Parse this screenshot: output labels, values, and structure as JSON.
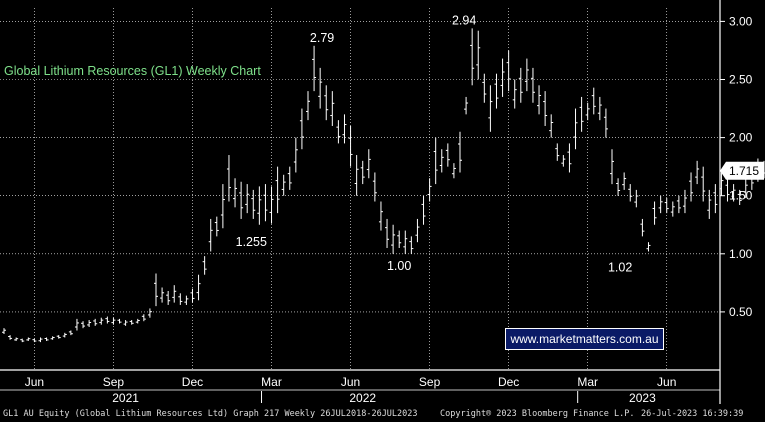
{
  "chart_data": {
    "type": "ohlc",
    "title": "Global Lithium Resources (GL1) Weekly Chart",
    "ylim": [
      0,
      3.1
    ],
    "yticks": [
      "0.50",
      "1.00",
      "1.50",
      "2.00",
      "2.50",
      "3.00"
    ],
    "x_month_labels": [
      "Jun",
      "Sep",
      "Dec",
      "Mar",
      "Jun",
      "Sep",
      "Dec",
      "Mar",
      "Jun"
    ],
    "x_year_labels": [
      "2021",
      "2022",
      "2023"
    ],
    "last_price": "1.715",
    "annotations": [
      "2.79",
      "2.94",
      "1.255",
      "1.00",
      "1.02"
    ],
    "weeks_start": "2021-05-03",
    "series": [
      {
        "values": [
          [
            0.36,
            0.31
          ],
          [
            0.3,
            0.26
          ],
          [
            0.28,
            0.25
          ],
          [
            0.27,
            0.24
          ],
          [
            0.28,
            0.25
          ],
          [
            0.27,
            0.24
          ],
          [
            0.28,
            0.24
          ],
          [
            0.28,
            0.25
          ],
          [
            0.29,
            0.26
          ],
          [
            0.3,
            0.27
          ],
          [
            0.32,
            0.28
          ],
          [
            0.34,
            0.3
          ],
          [
            0.44,
            0.34
          ],
          [
            0.42,
            0.36
          ],
          [
            0.43,
            0.37
          ],
          [
            0.44,
            0.38
          ],
          [
            0.45,
            0.39
          ],
          [
            0.46,
            0.4
          ],
          [
            0.45,
            0.39
          ],
          [
            0.44,
            0.4
          ],
          [
            0.43,
            0.38
          ],
          [
            0.43,
            0.39
          ],
          [
            0.44,
            0.4
          ],
          [
            0.48,
            0.42
          ],
          [
            0.53,
            0.45
          ],
          [
            0.83,
            0.55
          ],
          [
            0.71,
            0.58
          ],
          [
            0.68,
            0.56
          ],
          [
            0.73,
            0.58
          ],
          [
            0.66,
            0.56
          ],
          [
            0.64,
            0.56
          ],
          [
            0.7,
            0.58
          ],
          [
            0.82,
            0.6
          ],
          [
            0.98,
            0.82
          ],
          [
            1.3,
            1.02
          ],
          [
            1.32,
            1.15
          ],
          [
            1.6,
            1.22
          ],
          [
            1.85,
            1.45
          ],
          [
            1.65,
            1.4
          ],
          [
            1.62,
            1.3
          ],
          [
            1.6,
            1.35
          ],
          [
            1.55,
            1.3
          ],
          [
            1.58,
            1.25
          ],
          [
            1.6,
            1.28
          ],
          [
            1.58,
            1.26
          ],
          [
            1.75,
            1.35
          ],
          [
            1.68,
            1.5
          ],
          [
            1.75,
            1.55
          ],
          [
            2.0,
            1.7
          ],
          [
            2.25,
            1.9
          ],
          [
            2.4,
            2.15
          ],
          [
            2.79,
            2.4
          ],
          [
            2.6,
            2.25
          ],
          [
            2.45,
            2.15
          ],
          [
            2.4,
            2.1
          ],
          [
            2.15,
            1.95
          ],
          [
            2.2,
            1.95
          ],
          [
            2.1,
            1.75
          ],
          [
            1.85,
            1.5
          ],
          [
            1.8,
            1.6
          ],
          [
            1.9,
            1.65
          ],
          [
            1.7,
            1.45
          ],
          [
            1.45,
            1.2
          ],
          [
            1.3,
            1.05
          ],
          [
            1.25,
            1.0
          ],
          [
            1.2,
            1.05
          ],
          [
            1.2,
            1.0
          ],
          [
            1.15,
            1.0
          ],
          [
            1.3,
            1.1
          ],
          [
            1.5,
            1.25
          ],
          [
            1.65,
            1.45
          ],
          [
            2.0,
            1.6
          ],
          [
            1.9,
            1.7
          ],
          [
            1.95,
            1.75
          ],
          [
            1.78,
            1.65
          ],
          [
            2.05,
            1.7
          ],
          [
            2.35,
            2.2
          ],
          [
            2.94,
            2.45
          ],
          [
            2.92,
            2.5
          ],
          [
            2.55,
            2.3
          ],
          [
            2.45,
            2.05
          ],
          [
            2.55,
            2.25
          ],
          [
            2.68,
            2.35
          ],
          [
            2.75,
            2.4
          ],
          [
            2.5,
            2.25
          ],
          [
            2.6,
            2.3
          ],
          [
            2.68,
            2.4
          ],
          [
            2.6,
            2.3
          ],
          [
            2.45,
            2.2
          ],
          [
            2.4,
            2.1
          ],
          [
            2.2,
            2.0
          ],
          [
            1.95,
            1.8
          ],
          [
            1.85,
            1.75
          ],
          [
            1.95,
            1.7
          ],
          [
            2.25,
            1.9
          ],
          [
            2.35,
            2.05
          ],
          [
            2.3,
            2.15
          ],
          [
            2.43,
            2.2
          ],
          [
            2.35,
            2.15
          ],
          [
            2.25,
            2.0
          ],
          [
            1.9,
            1.6
          ],
          [
            1.65,
            1.5
          ],
          [
            1.7,
            1.55
          ],
          [
            1.6,
            1.45
          ],
          [
            1.55,
            1.4
          ],
          [
            1.3,
            1.15
          ],
          [
            1.1,
            1.02
          ],
          [
            1.45,
            1.25
          ],
          [
            1.5,
            1.35
          ],
          [
            1.48,
            1.35
          ],
          [
            1.45,
            1.32
          ],
          [
            1.5,
            1.35
          ],
          [
            1.55,
            1.35
          ],
          [
            1.7,
            1.45
          ],
          [
            1.8,
            1.6
          ],
          [
            1.75,
            1.45
          ],
          [
            1.55,
            1.3
          ],
          [
            1.6,
            1.35
          ],
          [
            1.7,
            1.5
          ],
          [
            1.65,
            1.45
          ],
          [
            1.6,
            1.45
          ],
          [
            1.55,
            1.42
          ],
          [
            1.65,
            1.48
          ],
          [
            1.75,
            1.55
          ],
          [
            1.82,
            1.62
          ],
          [
            1.8,
            1.65
          ],
          [
            1.75,
            1.57
          ],
          [
            1.74,
            1.6
          ]
        ]
      }
    ]
  },
  "footer": {
    "left": "GL1 AU Equity (Global Lithium Resources Ltd) Graph 217  Weekly 26JUL2018-26JUL2023",
    "center": "Copyright® 2023 Bloomberg Finance L.P.",
    "right": "26-Jul-2023 16:39:39"
  },
  "watermark": "www.marketmatters.com.au",
  "colors": {
    "background": "#000000",
    "bars": "#ffffff",
    "grid": "#ffffff",
    "title": "#7ee08a",
    "watermark_bg": "#0a1a66"
  }
}
